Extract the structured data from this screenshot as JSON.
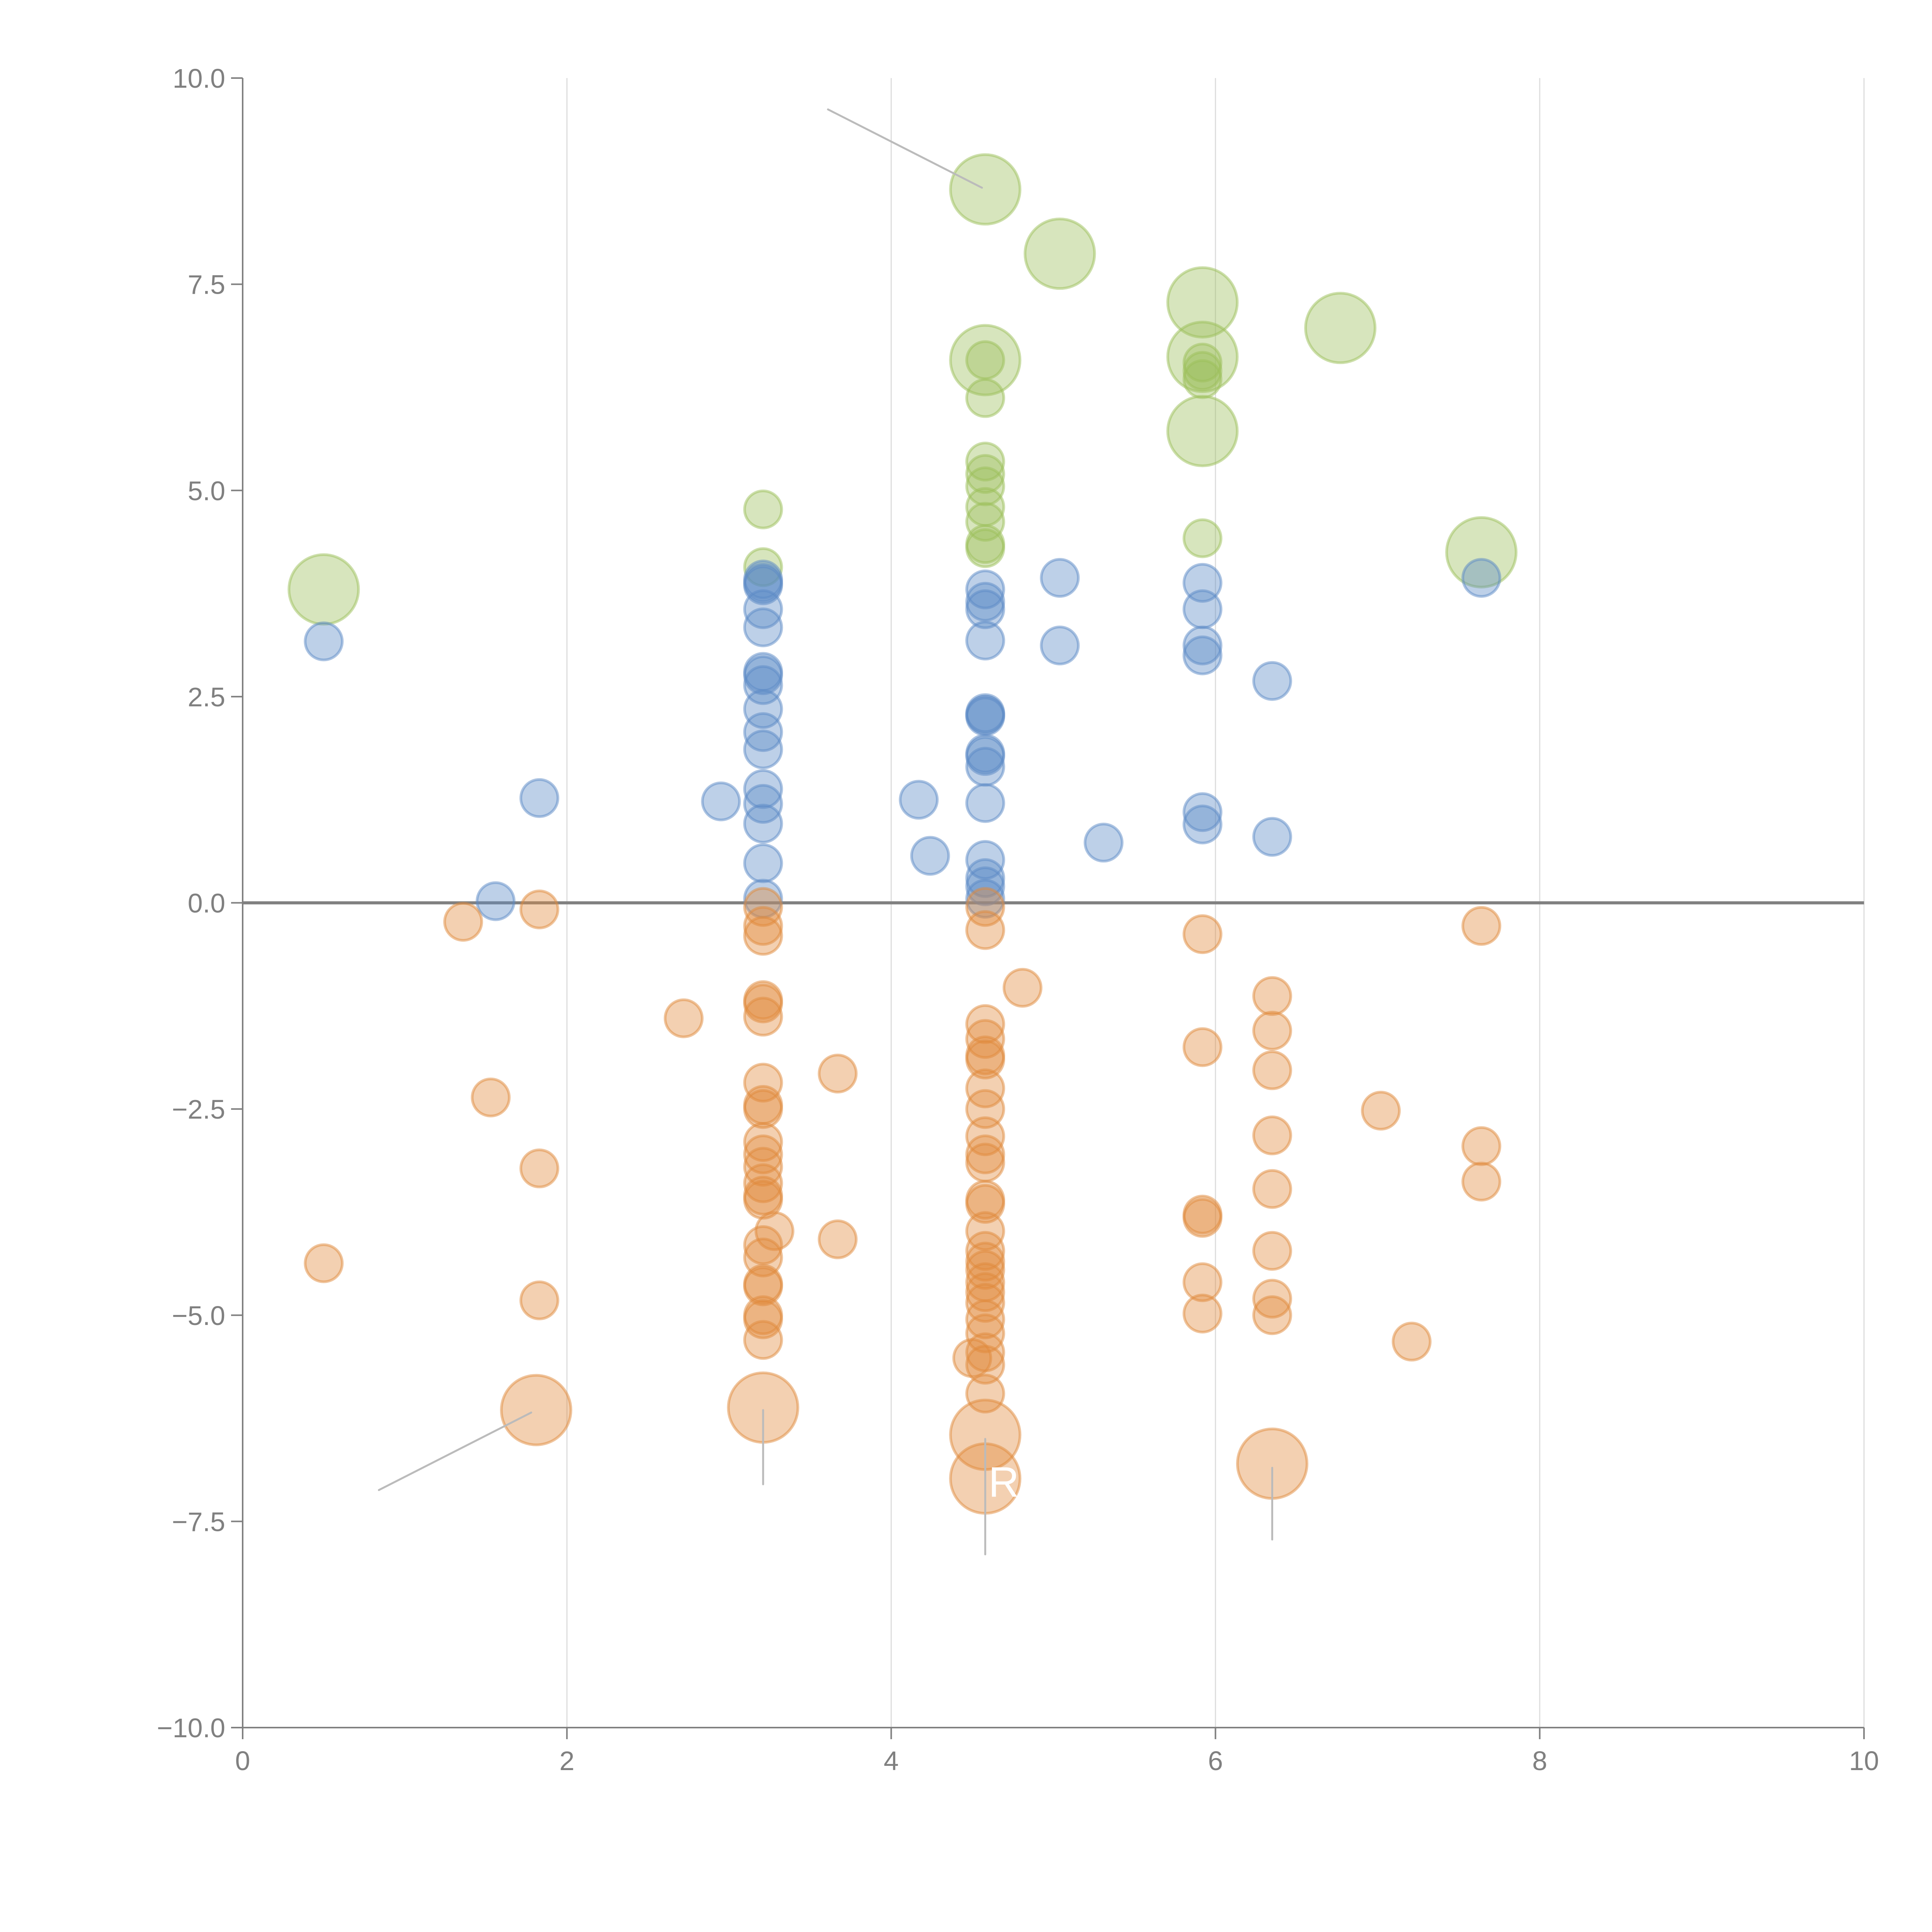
{
  "chart_data": {
    "type": "scatter",
    "variant": "bubble",
    "title": "",
    "xlabel": "",
    "ylabel": "",
    "xlim": [
      0,
      10
    ],
    "ylim": [
      -10,
      10
    ],
    "x_ticks": [
      "0",
      "2",
      "4",
      "6",
      "8",
      "10"
    ],
    "x_tick_values": [
      0,
      2,
      4,
      6,
      8,
      10
    ],
    "y_ticks": [
      "10.0",
      "7.5",
      "5.0",
      "2.5",
      "0.0",
      "−2.5",
      "−5.0",
      "−7.5",
      "−10.0"
    ],
    "y_tick_values": [
      10,
      7.5,
      5,
      2.5,
      0,
      -2.5,
      -5,
      -7.5,
      -10
    ],
    "grid": "vertical",
    "zero_line": true,
    "legend": "none",
    "annotations": [
      {
        "text": "R",
        "x": 4.6,
        "y": -7.2
      }
    ],
    "series": [
      {
        "name": "green",
        "color": "#9bbf5a",
        "points": [
          {
            "x": 4.58,
            "y": 8.65,
            "size": 2
          },
          {
            "x": 5.04,
            "y": 7.87,
            "size": 2
          },
          {
            "x": 5.92,
            "y": 7.28,
            "size": 2
          },
          {
            "x": 6.77,
            "y": 6.97,
            "size": 2
          },
          {
            "x": 4.58,
            "y": 6.58,
            "size": 2
          },
          {
            "x": 5.92,
            "y": 6.62,
            "size": 2
          },
          {
            "x": 5.92,
            "y": 5.72,
            "size": 2
          },
          {
            "x": 7.64,
            "y": 4.25,
            "size": 2
          },
          {
            "x": 0.5,
            "y": 3.8,
            "size": 2
          },
          {
            "x": 4.58,
            "y": 6.58,
            "size": 1
          },
          {
            "x": 4.58,
            "y": 6.12,
            "size": 1
          },
          {
            "x": 5.92,
            "y": 6.55,
            "size": 1
          },
          {
            "x": 5.92,
            "y": 6.45,
            "size": 1
          },
          {
            "x": 5.92,
            "y": 6.35,
            "size": 1
          },
          {
            "x": 4.58,
            "y": 5.35,
            "size": 1
          },
          {
            "x": 4.58,
            "y": 5.2,
            "size": 1
          },
          {
            "x": 4.58,
            "y": 5.05,
            "size": 1
          },
          {
            "x": 4.58,
            "y": 4.8,
            "size": 1
          },
          {
            "x": 4.58,
            "y": 4.62,
            "size": 1
          },
          {
            "x": 4.58,
            "y": 4.35,
            "size": 1
          },
          {
            "x": 4.58,
            "y": 4.3,
            "size": 1
          },
          {
            "x": 3.21,
            "y": 4.77,
            "size": 1
          },
          {
            "x": 3.21,
            "y": 4.07,
            "size": 1
          },
          {
            "x": 5.92,
            "y": 4.42,
            "size": 1
          }
        ]
      },
      {
        "name": "blue",
        "color": "#5b8ac6",
        "points": [
          {
            "x": 0.5,
            "y": 3.17,
            "size": 1
          },
          {
            "x": 1.83,
            "y": 1.27,
            "size": 1
          },
          {
            "x": 1.56,
            "y": 0.02,
            "size": 1
          },
          {
            "x": 2.95,
            "y": 1.23,
            "size": 1
          },
          {
            "x": 3.21,
            "y": 3.92,
            "size": 1
          },
          {
            "x": 3.21,
            "y": 3.88,
            "size": 1
          },
          {
            "x": 3.21,
            "y": 3.85,
            "size": 1
          },
          {
            "x": 3.21,
            "y": 3.56,
            "size": 1
          },
          {
            "x": 3.21,
            "y": 3.34,
            "size": 1
          },
          {
            "x": 3.21,
            "y": 2.8,
            "size": 1
          },
          {
            "x": 3.21,
            "y": 2.76,
            "size": 1
          },
          {
            "x": 3.21,
            "y": 2.64,
            "size": 1
          },
          {
            "x": 3.21,
            "y": 2.35,
            "size": 1
          },
          {
            "x": 3.21,
            "y": 2.07,
            "size": 1
          },
          {
            "x": 3.21,
            "y": 1.86,
            "size": 1
          },
          {
            "x": 3.21,
            "y": 1.38,
            "size": 1
          },
          {
            "x": 3.21,
            "y": 1.2,
            "size": 1
          },
          {
            "x": 3.21,
            "y": 0.96,
            "size": 1
          },
          {
            "x": 3.21,
            "y": 0.48,
            "size": 1
          },
          {
            "x": 3.21,
            "y": 0.05,
            "size": 1
          },
          {
            "x": 4.17,
            "y": 1.25,
            "size": 1
          },
          {
            "x": 4.24,
            "y": 0.57,
            "size": 1
          },
          {
            "x": 4.58,
            "y": 3.8,
            "size": 1
          },
          {
            "x": 4.58,
            "y": 3.65,
            "size": 1
          },
          {
            "x": 4.58,
            "y": 3.56,
            "size": 1
          },
          {
            "x": 4.58,
            "y": 3.18,
            "size": 1
          },
          {
            "x": 4.58,
            "y": 2.3,
            "size": 1
          },
          {
            "x": 4.58,
            "y": 2.28,
            "size": 1
          },
          {
            "x": 4.58,
            "y": 2.26,
            "size": 1
          },
          {
            "x": 4.58,
            "y": 1.81,
            "size": 1
          },
          {
            "x": 4.58,
            "y": 1.78,
            "size": 1
          },
          {
            "x": 4.58,
            "y": 1.65,
            "size": 1
          },
          {
            "x": 4.58,
            "y": 1.21,
            "size": 1
          },
          {
            "x": 4.58,
            "y": 0.52,
            "size": 1
          },
          {
            "x": 4.58,
            "y": 0.3,
            "size": 1
          },
          {
            "x": 4.58,
            "y": 0.2,
            "size": 1
          },
          {
            "x": 4.58,
            "y": 0.05,
            "size": 1
          },
          {
            "x": 5.04,
            "y": 3.94,
            "size": 1
          },
          {
            "x": 5.04,
            "y": 3.12,
            "size": 1
          },
          {
            "x": 5.31,
            "y": 0.73,
            "size": 1
          },
          {
            "x": 5.92,
            "y": 3.88,
            "size": 1
          },
          {
            "x": 5.92,
            "y": 3.56,
            "size": 1
          },
          {
            "x": 5.92,
            "y": 3.12,
            "size": 1
          },
          {
            "x": 5.92,
            "y": 3.0,
            "size": 1
          },
          {
            "x": 5.92,
            "y": 1.1,
            "size": 1
          },
          {
            "x": 5.92,
            "y": 0.95,
            "size": 1
          },
          {
            "x": 6.35,
            "y": 2.69,
            "size": 1
          },
          {
            "x": 6.35,
            "y": 0.8,
            "size": 1
          },
          {
            "x": 7.64,
            "y": 3.94,
            "size": 1
          }
        ]
      },
      {
        "name": "orange",
        "color": "#e08a3c",
        "points": [
          {
            "x": 1.36,
            "y": -0.23,
            "size": 1
          },
          {
            "x": 1.83,
            "y": -0.08,
            "size": 1
          },
          {
            "x": 1.53,
            "y": -2.36,
            "size": 1
          },
          {
            "x": 1.83,
            "y": -3.22,
            "size": 1
          },
          {
            "x": 0.5,
            "y": -4.37,
            "size": 1
          },
          {
            "x": 1.83,
            "y": -4.82,
            "size": 1
          },
          {
            "x": 2.72,
            "y": -1.4,
            "size": 1
          },
          {
            "x": 3.67,
            "y": -2.07,
            "size": 1
          },
          {
            "x": 3.67,
            "y": -4.08,
            "size": 1
          },
          {
            "x": 3.21,
            "y": -0.05,
            "size": 1
          },
          {
            "x": 3.21,
            "y": -0.28,
            "size": 1
          },
          {
            "x": 3.21,
            "y": -0.4,
            "size": 1
          },
          {
            "x": 3.21,
            "y": -1.18,
            "size": 1
          },
          {
            "x": 3.21,
            "y": -1.22,
            "size": 1
          },
          {
            "x": 3.21,
            "y": -1.38,
            "size": 1
          },
          {
            "x": 3.21,
            "y": -2.18,
            "size": 1
          },
          {
            "x": 3.21,
            "y": -2.45,
            "size": 1
          },
          {
            "x": 3.21,
            "y": -2.5,
            "size": 1
          },
          {
            "x": 3.21,
            "y": -2.9,
            "size": 1
          },
          {
            "x": 3.21,
            "y": -3.05,
            "size": 1
          },
          {
            "x": 3.21,
            "y": -3.2,
            "size": 1
          },
          {
            "x": 3.21,
            "y": -3.4,
            "size": 1
          },
          {
            "x": 3.21,
            "y": -3.55,
            "size": 1
          },
          {
            "x": 3.21,
            "y": -3.6,
            "size": 1
          },
          {
            "x": 3.28,
            "y": -3.98,
            "size": 1
          },
          {
            "x": 3.21,
            "y": -4.15,
            "size": 1
          },
          {
            "x": 3.21,
            "y": -4.3,
            "size": 1
          },
          {
            "x": 3.21,
            "y": -4.62,
            "size": 1
          },
          {
            "x": 3.21,
            "y": -4.65,
            "size": 1
          },
          {
            "x": 3.21,
            "y": -5.0,
            "size": 1
          },
          {
            "x": 3.21,
            "y": -5.05,
            "size": 1
          },
          {
            "x": 3.21,
            "y": -5.3,
            "size": 1
          },
          {
            "x": 4.58,
            "y": -0.05,
            "size": 1
          },
          {
            "x": 4.58,
            "y": -0.33,
            "size": 1
          },
          {
            "x": 4.81,
            "y": -1.03,
            "size": 1
          },
          {
            "x": 4.58,
            "y": -1.47,
            "size": 1
          },
          {
            "x": 4.58,
            "y": -1.65,
            "size": 1
          },
          {
            "x": 4.58,
            "y": -1.85,
            "size": 1
          },
          {
            "x": 4.58,
            "y": -1.9,
            "size": 1
          },
          {
            "x": 4.58,
            "y": -2.25,
            "size": 1
          },
          {
            "x": 4.58,
            "y": -2.5,
            "size": 1
          },
          {
            "x": 4.58,
            "y": -2.83,
            "size": 1
          },
          {
            "x": 4.58,
            "y": -3.05,
            "size": 1
          },
          {
            "x": 4.58,
            "y": -3.15,
            "size": 1
          },
          {
            "x": 4.58,
            "y": -3.6,
            "size": 1
          },
          {
            "x": 4.58,
            "y": -3.65,
            "size": 1
          },
          {
            "x": 4.58,
            "y": -3.98,
            "size": 1
          },
          {
            "x": 4.58,
            "y": -4.22,
            "size": 1
          },
          {
            "x": 4.58,
            "y": -4.35,
            "size": 1
          },
          {
            "x": 4.58,
            "y": -4.45,
            "size": 1
          },
          {
            "x": 4.58,
            "y": -4.6,
            "size": 1
          },
          {
            "x": 4.58,
            "y": -4.72,
            "size": 1
          },
          {
            "x": 4.58,
            "y": -4.85,
            "size": 1
          },
          {
            "x": 4.58,
            "y": -5.05,
            "size": 1
          },
          {
            "x": 4.58,
            "y": -5.22,
            "size": 1
          },
          {
            "x": 4.5,
            "y": -5.52,
            "size": 1
          },
          {
            "x": 4.58,
            "y": -5.45,
            "size": 1
          },
          {
            "x": 4.58,
            "y": -5.6,
            "size": 1
          },
          {
            "x": 4.58,
            "y": -5.95,
            "size": 1
          },
          {
            "x": 5.92,
            "y": -0.38,
            "size": 1
          },
          {
            "x": 5.92,
            "y": -1.75,
            "size": 1
          },
          {
            "x": 5.92,
            "y": -3.78,
            "size": 1
          },
          {
            "x": 5.92,
            "y": -3.82,
            "size": 1
          },
          {
            "x": 5.92,
            "y": -4.6,
            "size": 1
          },
          {
            "x": 5.92,
            "y": -4.98,
            "size": 1
          },
          {
            "x": 6.35,
            "y": -1.13,
            "size": 1
          },
          {
            "x": 6.35,
            "y": -1.55,
            "size": 1
          },
          {
            "x": 6.35,
            "y": -2.03,
            "size": 1
          },
          {
            "x": 6.35,
            "y": -2.82,
            "size": 1
          },
          {
            "x": 6.35,
            "y": -3.47,
            "size": 1
          },
          {
            "x": 6.35,
            "y": -4.22,
            "size": 1
          },
          {
            "x": 6.35,
            "y": -4.8,
            "size": 1
          },
          {
            "x": 6.35,
            "y": -5.0,
            "size": 1
          },
          {
            "x": 7.02,
            "y": -2.52,
            "size": 1
          },
          {
            "x": 7.21,
            "y": -5.32,
            "size": 1
          },
          {
            "x": 7.64,
            "y": -0.28,
            "size": 1
          },
          {
            "x": 7.64,
            "y": -2.95,
            "size": 1
          },
          {
            "x": 7.64,
            "y": -3.38,
            "size": 1
          },
          {
            "x": 1.81,
            "y": -6.15,
            "size": 2
          },
          {
            "x": 3.21,
            "y": -6.12,
            "size": 2
          },
          {
            "x": 4.58,
            "y": -6.45,
            "size": 2
          },
          {
            "x": 4.58,
            "y": -6.98,
            "size": 2
          },
          {
            "x": 6.35,
            "y": -6.8,
            "size": 2
          }
        ]
      }
    ],
    "leader_lines": [
      {
        "x1": 3.61,
        "y1": 9.62,
        "x2": 4.56,
        "y2": 8.67,
        "color": "#bbbbbb"
      },
      {
        "x1": 0.84,
        "y1": -7.12,
        "x2": 1.78,
        "y2": -6.18,
        "color": "#bbbbbb"
      },
      {
        "x1": 3.21,
        "y1": -6.15,
        "x2": 3.21,
        "y2": -7.05,
        "color": "#bbbbbb"
      },
      {
        "x1": 4.58,
        "y1": -6.5,
        "x2": 4.58,
        "y2": -7.9,
        "color": "#bbbbbb"
      },
      {
        "x1": 6.35,
        "y1": -6.85,
        "x2": 6.35,
        "y2": -7.72,
        "color": "#bbbbbb"
      }
    ]
  }
}
